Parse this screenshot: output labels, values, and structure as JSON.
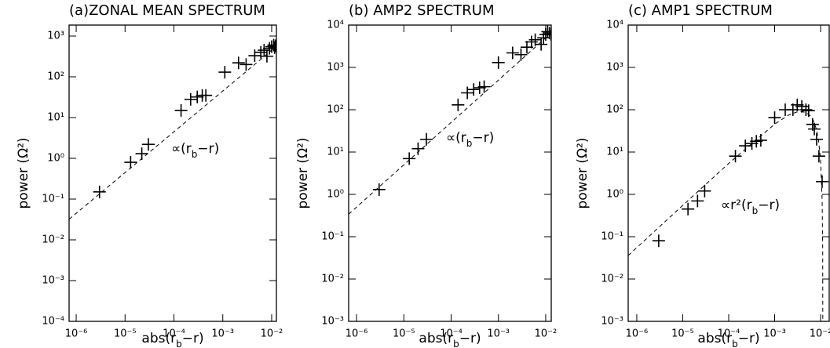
{
  "chart_data": [
    {
      "type": "scatter",
      "title": "(a)ZONAL MEAN SPECTRUM",
      "x_label": [
        "abs(r",
        "b",
        "−r)"
      ],
      "y_label": "power (Ω²)",
      "annotation": [
        "∝(r",
        "b",
        "−r)"
      ],
      "log_x": true,
      "log_y": true,
      "color": "#000000",
      "xlim": [
        7.16e-07,
        0.0125
      ],
      "ylim": [
        0.0001,
        1860
      ],
      "xticks": [
        {
          "value": 1e-06,
          "label": "10⁻⁶"
        },
        {
          "value": 1e-05,
          "label": "10⁻⁵"
        },
        {
          "value": 0.0001,
          "label": "10⁻⁴"
        },
        {
          "value": 0.001,
          "label": "10⁻³"
        },
        {
          "value": 0.01,
          "label": "10⁻²"
        }
      ],
      "yticks": [
        {
          "value": 0.0001,
          "label": "10⁻⁴"
        },
        {
          "value": 0.001,
          "label": "10⁻³"
        },
        {
          "value": 0.01,
          "label": "10⁻²"
        },
        {
          "value": 0.1,
          "label": "10⁻¹"
        },
        {
          "value": 1,
          "label": "10⁰"
        },
        {
          "value": 10,
          "label": "10¹"
        },
        {
          "value": 100,
          "label": "10²"
        },
        {
          "value": 1000,
          "label": "10³"
        }
      ],
      "x": [
        3e-06,
        1.3e-05,
        2.2e-05,
        3e-05,
        0.00014,
        0.00022,
        0.0003,
        0.00038,
        0.00045,
        0.0011,
        0.0021,
        0.003,
        0.0045,
        0.006,
        0.007,
        0.008,
        0.009,
        0.01,
        0.011,
        0.012,
        0.0115
      ],
      "values": [
        0.15,
        0.8,
        1.3,
        2.2,
        15,
        28,
        32,
        35,
        35,
        130,
        220,
        200,
        330,
        400,
        450,
        320,
        500,
        550,
        600,
        580,
        520
      ],
      "fit_x": [
        7.16e-07,
        0.0125
      ],
      "fit_y": [
        0.032,
        560
      ]
    },
    {
      "type": "scatter",
      "title": "(b) AMP2 SPECTRUM",
      "x_label": [
        "abs(r",
        "b",
        "−r)"
      ],
      "y_label": "power (Ω²)",
      "annotation": [
        "∝(r",
        "b",
        "−r)"
      ],
      "log_x": true,
      "log_y": true,
      "color": "#000000",
      "xlim": [
        6.8e-07,
        0.0131
      ],
      "ylim": [
        0.001,
        10000
      ],
      "xticks": [
        {
          "value": 1e-06,
          "label": "10⁻⁶"
        },
        {
          "value": 1e-05,
          "label": "10⁻⁵"
        },
        {
          "value": 0.0001,
          "label": "10⁻⁴"
        },
        {
          "value": 0.001,
          "label": "10⁻³"
        },
        {
          "value": 0.01,
          "label": "10⁻²"
        }
      ],
      "yticks": [
        {
          "value": 0.001,
          "label": "10⁻³"
        },
        {
          "value": 0.01,
          "label": "10⁻²"
        },
        {
          "value": 0.1,
          "label": "10⁻¹"
        },
        {
          "value": 1,
          "label": "10⁰"
        },
        {
          "value": 10,
          "label": "10¹"
        },
        {
          "value": 100,
          "label": "10²"
        },
        {
          "value": 1000,
          "label": "10³"
        },
        {
          "value": 10000,
          "label": "10⁴"
        }
      ],
      "x": [
        3e-06,
        1.3e-05,
        2e-05,
        3e-05,
        0.00014,
        0.00022,
        0.0003,
        0.0004,
        0.0005,
        0.001,
        0.002,
        0.003,
        0.004,
        0.005,
        0.006,
        0.008,
        0.009,
        0.01,
        0.011,
        0.012,
        0.013
      ],
      "values": [
        1.3,
        7,
        12,
        20,
        130,
        250,
        300,
        330,
        350,
        1300,
        2200,
        2000,
        3000,
        4000,
        4500,
        3500,
        5000,
        6000,
        7000,
        6500,
        6000
      ],
      "fit_x": [
        6.8e-07,
        0.0131
      ],
      "fit_y": [
        0.34,
        6550
      ]
    },
    {
      "type": "scatter",
      "title": "(c) AMP1 SPECTRUM",
      "x_label": [
        "abs(r",
        "b",
        "−r)"
      ],
      "y_label": "power (Ω²)",
      "annotation": [
        "∝r²(r",
        "b",
        "−r)"
      ],
      "log_x": true,
      "log_y": true,
      "color": "#000000",
      "xlim": [
        6.5e-07,
        0.0154
      ],
      "ylim": [
        0.001,
        10000
      ],
      "xticks": [
        {
          "value": 1e-06,
          "label": "10⁻⁶"
        },
        {
          "value": 1e-05,
          "label": "10⁻⁵"
        },
        {
          "value": 0.0001,
          "label": "10⁻⁴"
        },
        {
          "value": 0.001,
          "label": "10⁻³"
        },
        {
          "value": 0.01,
          "label": "10⁻²"
        }
      ],
      "yticks": [
        {
          "value": 0.001,
          "label": "10⁻³"
        },
        {
          "value": 0.01,
          "label": "10⁻²"
        },
        {
          "value": 0.1,
          "label": "10⁻¹"
        },
        {
          "value": 1,
          "label": "10⁰"
        },
        {
          "value": 10,
          "label": "10¹"
        },
        {
          "value": 100,
          "label": "10²"
        },
        {
          "value": 1000,
          "label": "10³"
        },
        {
          "value": 10000,
          "label": "10⁴"
        }
      ],
      "x": [
        3e-06,
        1.3e-05,
        2.1e-05,
        3e-05,
        0.00014,
        0.00023,
        0.00032,
        0.0004,
        0.0005,
        0.001,
        0.0017,
        0.0025,
        0.0031,
        0.0039,
        0.0048,
        0.0055,
        0.0067,
        0.0073,
        0.0082,
        0.0092,
        0.0108
      ],
      "values": [
        0.08,
        0.45,
        0.7,
        1.2,
        8,
        14,
        16,
        18,
        19,
        65,
        100,
        100,
        130,
        120,
        100,
        95,
        45,
        35,
        20,
        8,
        2
      ],
      "fit_x": [
        6.5e-07,
        1e-05,
        0.0001,
        0.001,
        0.002,
        0.003,
        0.004,
        0.005,
        0.006,
        0.007,
        0.008,
        0.009,
        0.01,
        0.0108,
        0.0111,
        0.01119
      ],
      "fit_y": [
        0.036,
        0.55,
        5.4,
        45.7,
        74.4,
        88,
        90.4,
        84,
        71,
        54,
        35.8,
        19.6,
        6.4,
        0.76,
        0.049,
        0.0001
      ]
    }
  ]
}
